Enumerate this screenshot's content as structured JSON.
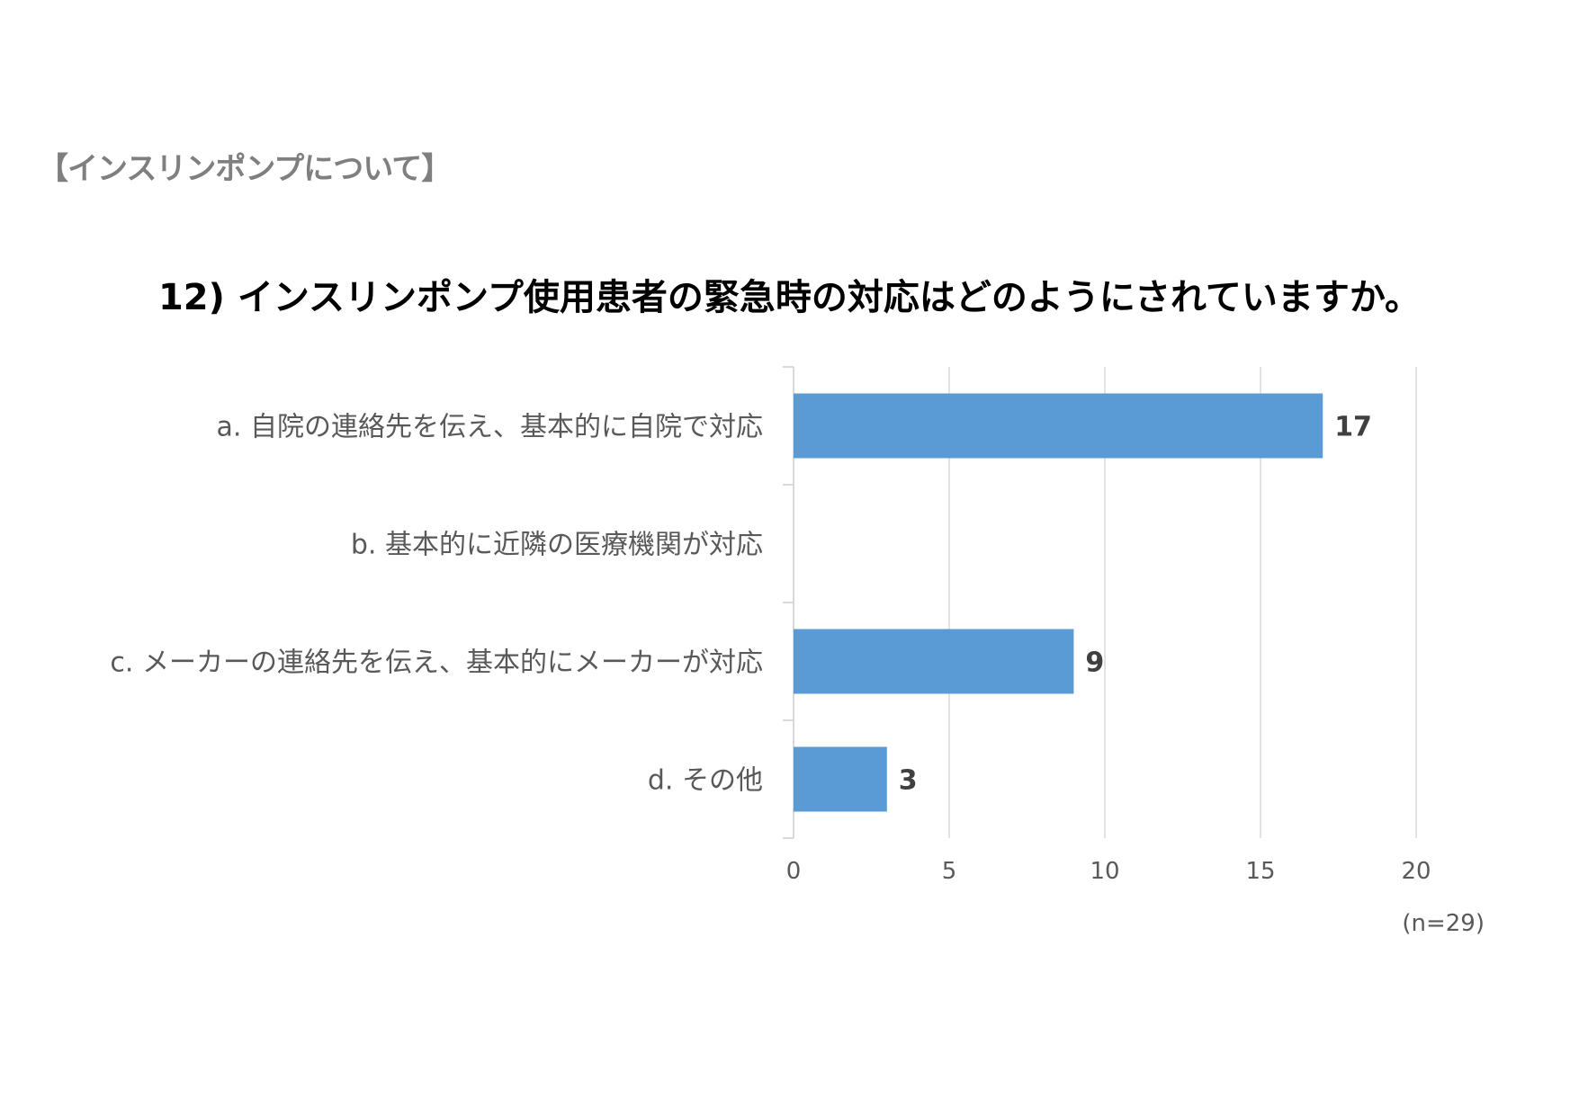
{
  "header": {
    "section": "【インスリンポンプについて】",
    "question": "12) インスリンポンプ使用患者の緊急時の対応はどのようにされていますか。"
  },
  "chart_data": {
    "type": "bar",
    "orientation": "horizontal",
    "categories": [
      "a. 自院の連絡先を伝え、基本的に自院で対応",
      "b. 基本的に近隣の医療機関が対応",
      "c. メーカーの連絡先を伝え、基本的にメーカーが対応",
      "d. その他"
    ],
    "values": [
      17,
      0,
      9,
      3
    ],
    "data_labels": [
      "17",
      "",
      "9",
      "3"
    ],
    "xlim": [
      0,
      20
    ],
    "xticks": [
      "0",
      "5",
      "10",
      "15",
      "20"
    ],
    "grid": true,
    "legend": "none",
    "bar_color": "#5b9bd5"
  },
  "footnote": "(n=29)"
}
